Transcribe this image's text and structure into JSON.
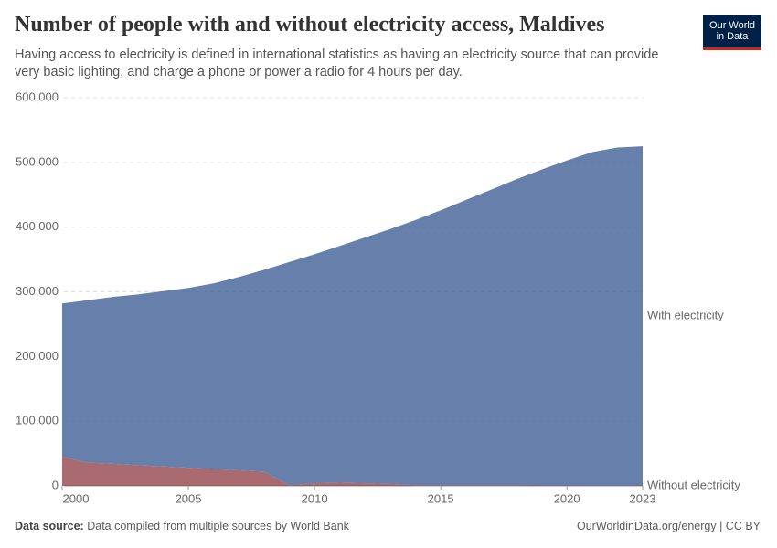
{
  "chart_data": {
    "type": "stacked-area",
    "title": "Number of people with and without electricity access, Maldives",
    "subtitle": "Having access to electricity is defined in international statistics as having an electricity source that can provide very basic lighting, and charge a phone or power a radio for 4 hours per day.",
    "logo": [
      "Our World",
      "in Data"
    ],
    "source_label": "Data source:",
    "source": "Data compiled from multiple sources by World Bank",
    "credit": "OurWorldinData.org/energy | CC BY",
    "x": [
      2000,
      2001,
      2002,
      2003,
      2004,
      2005,
      2006,
      2007,
      2008,
      2009,
      2010,
      2011,
      2012,
      2013,
      2014,
      2015,
      2016,
      2017,
      2018,
      2019,
      2020,
      2021,
      2022,
      2023
    ],
    "xlim": [
      2000,
      2023
    ],
    "xticks": [
      2000,
      2005,
      2010,
      2015,
      2020,
      2023
    ],
    "ylim": [
      0,
      600000
    ],
    "yticks": [
      0,
      {
        "value": 100000,
        "label": "100,000"
      },
      {
        "value": 200000,
        "label": "200,000"
      },
      {
        "value": 300000,
        "label": "300,000"
      },
      {
        "value": 400000,
        "label": "400,000"
      },
      {
        "value": 500000,
        "label": "500,000"
      },
      {
        "value": 600000,
        "label": "600,000"
      }
    ],
    "grid": true,
    "series": [
      {
        "name": "Without electricity",
        "color": "#883039",
        "values": [
          45000,
          36000,
          34000,
          32000,
          30000,
          28000,
          26000,
          24000,
          22000,
          1000,
          4000,
          5000,
          4000,
          3000,
          1000,
          1000,
          1000,
          1000,
          1000,
          500,
          500,
          500,
          500,
          500
        ]
      },
      {
        "name": "With electricity",
        "color": "#4C6A9C",
        "values": [
          237000,
          251000,
          258000,
          264000,
          271000,
          278000,
          287000,
          299000,
          312000,
          345000,
          354000,
          366000,
          380000,
          394000,
          410000,
          425000,
          441000,
          457000,
          473000,
          488500,
          502500,
          515500,
          522500,
          524500
        ]
      }
    ]
  }
}
